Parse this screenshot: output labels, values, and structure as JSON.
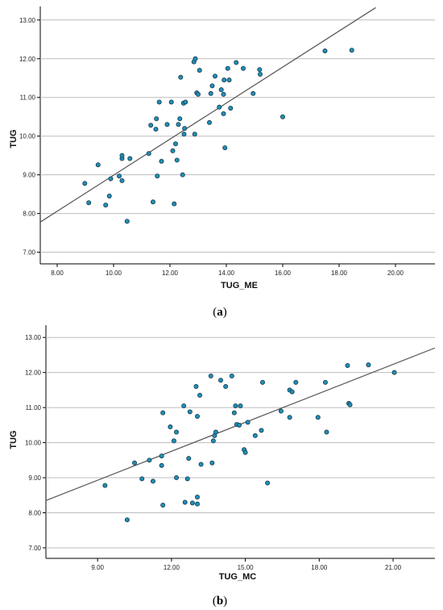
{
  "chart_data": [
    {
      "type": "scatter",
      "panel_label": "a",
      "xlabel": "TUG_ME",
      "ylabel": "TUG",
      "xlim": [
        7.4,
        21.4
      ],
      "ylim": [
        6.7,
        13.35
      ],
      "x_ticks": [
        "8.00",
        "10.00",
        "12.00",
        "14.00",
        "16.00",
        "18.00",
        "20.00"
      ],
      "y_ticks": [
        "7.00",
        "8.00",
        "9.00",
        "10.00",
        "11.00",
        "12.00",
        "13.00"
      ],
      "grid": "horizontal",
      "point_color": "#1f8fb8",
      "line_color": "#555555",
      "fit_line": [
        [
          7.4,
          7.78
        ],
        [
          19.3,
          13.32
        ]
      ],
      "points": [
        [
          8.98,
          8.78
        ],
        [
          9.12,
          8.28
        ],
        [
          9.45,
          9.26
        ],
        [
          9.72,
          8.22
        ],
        [
          9.85,
          8.45
        ],
        [
          9.9,
          8.9
        ],
        [
          10.2,
          8.97
        ],
        [
          10.3,
          9.42
        ],
        [
          10.3,
          9.5
        ],
        [
          10.3,
          8.85
        ],
        [
          10.48,
          7.8
        ],
        [
          10.58,
          9.42
        ],
        [
          11.25,
          9.55
        ],
        [
          11.32,
          10.28
        ],
        [
          11.4,
          8.3
        ],
        [
          11.5,
          10.18
        ],
        [
          11.52,
          10.45
        ],
        [
          11.55,
          8.97
        ],
        [
          11.62,
          10.88
        ],
        [
          11.7,
          9.35
        ],
        [
          11.9,
          10.3
        ],
        [
          12.05,
          10.88
        ],
        [
          12.1,
          9.62
        ],
        [
          12.15,
          8.25
        ],
        [
          12.2,
          9.8
        ],
        [
          12.25,
          9.38
        ],
        [
          12.3,
          10.3
        ],
        [
          12.35,
          10.45
        ],
        [
          12.38,
          11.52
        ],
        [
          12.45,
          9.0
        ],
        [
          12.48,
          10.85
        ],
        [
          12.5,
          10.05
        ],
        [
          12.55,
          10.88
        ],
        [
          12.52,
          10.2
        ],
        [
          12.85,
          11.92
        ],
        [
          12.88,
          10.05
        ],
        [
          12.9,
          12.0
        ],
        [
          12.95,
          11.12
        ],
        [
          13.0,
          11.08
        ],
        [
          13.05,
          11.7
        ],
        [
          13.4,
          10.35
        ],
        [
          13.45,
          11.1
        ],
        [
          13.5,
          11.3
        ],
        [
          13.6,
          11.55
        ],
        [
          13.75,
          10.75
        ],
        [
          13.82,
          11.2
        ],
        [
          13.9,
          10.58
        ],
        [
          13.9,
          11.08
        ],
        [
          13.92,
          11.45
        ],
        [
          13.95,
          9.7
        ],
        [
          14.05,
          11.75
        ],
        [
          14.1,
          11.45
        ],
        [
          14.15,
          10.72
        ],
        [
          14.35,
          11.9
        ],
        [
          14.6,
          11.75
        ],
        [
          14.95,
          11.1
        ],
        [
          15.18,
          11.72
        ],
        [
          15.2,
          11.6
        ],
        [
          16.0,
          10.5
        ],
        [
          17.5,
          12.2
        ],
        [
          18.45,
          12.22
        ]
      ]
    },
    {
      "type": "scatter",
      "panel_label": "b",
      "xlabel": "TUG_MC",
      "ylabel": "TUG",
      "xlim": [
        6.9,
        22.7
      ],
      "ylim": [
        6.7,
        13.35
      ],
      "x_ticks": [
        "9.00",
        "12.00",
        "15.00",
        "18.00",
        "21.00"
      ],
      "y_ticks": [
        "7.00",
        "8.00",
        "9.00",
        "10.00",
        "11.00",
        "12.00",
        "13.00"
      ],
      "grid": "horizontal",
      "point_color": "#1f8fb8",
      "line_color": "#555555",
      "fit_line": [
        [
          6.9,
          8.35
        ],
        [
          22.7,
          12.7
        ]
      ],
      "points": [
        [
          9.3,
          8.78
        ],
        [
          10.2,
          7.8
        ],
        [
          10.5,
          9.42
        ],
        [
          10.8,
          8.97
        ],
        [
          11.1,
          9.5
        ],
        [
          11.25,
          8.9
        ],
        [
          11.6,
          9.62
        ],
        [
          11.6,
          9.35
        ],
        [
          11.65,
          10.85
        ],
        [
          11.65,
          8.22
        ],
        [
          11.95,
          10.45
        ],
        [
          12.1,
          10.05
        ],
        [
          12.2,
          10.3
        ],
        [
          12.2,
          9.0
        ],
        [
          12.5,
          11.05
        ],
        [
          12.55,
          8.3
        ],
        [
          12.65,
          8.97
        ],
        [
          12.7,
          9.55
        ],
        [
          12.75,
          10.88
        ],
        [
          12.85,
          8.28
        ],
        [
          13.0,
          11.6
        ],
        [
          13.05,
          10.75
        ],
        [
          13.05,
          8.45
        ],
        [
          13.05,
          8.25
        ],
        [
          13.15,
          11.35
        ],
        [
          13.2,
          9.38
        ],
        [
          13.6,
          11.9
        ],
        [
          13.65,
          9.42
        ],
        [
          13.7,
          10.05
        ],
        [
          13.75,
          10.2
        ],
        [
          13.8,
          10.3
        ],
        [
          14.0,
          11.78
        ],
        [
          14.2,
          11.6
        ],
        [
          14.45,
          11.9
        ],
        [
          14.55,
          10.85
        ],
        [
          14.6,
          11.05
        ],
        [
          14.65,
          10.52
        ],
        [
          14.75,
          10.5
        ],
        [
          14.8,
          11.05
        ],
        [
          14.95,
          9.8
        ],
        [
          15.0,
          9.72
        ],
        [
          15.1,
          10.58
        ],
        [
          15.4,
          10.2
        ],
        [
          15.65,
          10.35
        ],
        [
          15.7,
          11.72
        ],
        [
          15.9,
          8.85
        ],
        [
          16.45,
          10.9
        ],
        [
          16.8,
          11.5
        ],
        [
          16.8,
          10.72
        ],
        [
          16.9,
          11.45
        ],
        [
          17.05,
          11.72
        ],
        [
          17.95,
          10.72
        ],
        [
          18.25,
          11.72
        ],
        [
          18.3,
          10.3
        ],
        [
          19.15,
          12.2
        ],
        [
          19.2,
          11.12
        ],
        [
          19.25,
          11.08
        ],
        [
          20.0,
          12.22
        ],
        [
          21.05,
          12.0
        ]
      ]
    }
  ]
}
